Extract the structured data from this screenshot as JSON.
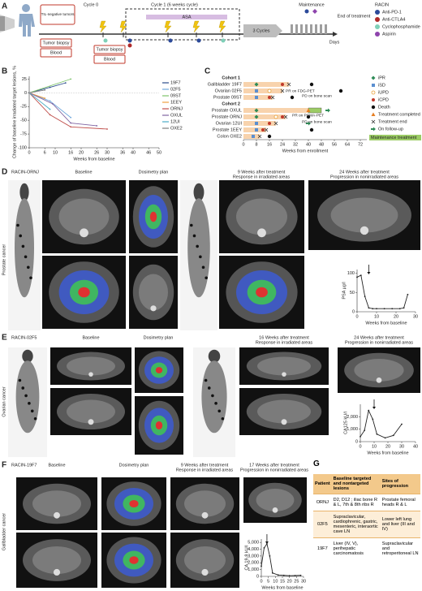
{
  "panel_a": {
    "label": "A",
    "tumor_box": "TIL-negative tumors",
    "screening": [
      "Tumor biopsy",
      "Blood"
    ],
    "cycle0": "Cycle 0",
    "cycle1": "Cycle 1 (6 weeks cycle)",
    "asa": "ASA",
    "cycle1_samples": [
      "Tumor biopsy",
      "Blood"
    ],
    "cycles": "3 Cycles",
    "maintenance": "Maintenance",
    "end": "End of treatment",
    "days": "Days",
    "legend_title": "RACIN",
    "legend": [
      {
        "name": "Anti-PD-1",
        "color": "#2c4a9a"
      },
      {
        "name": "Anti-CTLA4",
        "color": "#b02a2a"
      },
      {
        "name": "Cyclophosphamide",
        "color": "#7fd0b8"
      },
      {
        "name": "Aspirin",
        "color": "#8e44ad"
      }
    ]
  },
  "chart_data": [
    {
      "type": "line",
      "label": "B",
      "y_label": "Change of baseline irradiated target lesions, %",
      "x_label": "Weeks from baseline",
      "xlim": [
        0,
        50
      ],
      "ylim": [
        -100,
        30
      ],
      "xticks": [
        0,
        6,
        10,
        16,
        20,
        26,
        30,
        36,
        40,
        46,
        50
      ],
      "yticks": [
        25,
        0,
        -25,
        -50,
        -75,
        -100
      ],
      "legend": "right",
      "series": [
        {
          "name": "19F7",
          "color": "#2b4c8c",
          "x": [
            0,
            8,
            14
          ],
          "values": [
            0,
            10,
            18
          ]
        },
        {
          "name": "02F5",
          "color": "#6fa8dc",
          "x": [
            0,
            8,
            16
          ],
          "values": [
            0,
            -15,
            -45
          ]
        },
        {
          "name": "09ST",
          "color": "#7dc36b",
          "x": [
            0,
            16
          ],
          "values": [
            0,
            25
          ]
        },
        {
          "name": "1EEY",
          "color": "#f0a040",
          "x": [
            0,
            6
          ],
          "values": [
            0,
            -10
          ]
        },
        {
          "name": "ORNJ",
          "color": "#c0504d",
          "x": [
            0,
            8,
            16,
            30
          ],
          "values": [
            0,
            -40,
            -62,
            -66
          ]
        },
        {
          "name": "OXUL",
          "color": "#8064a2",
          "x": [
            0,
            9,
            16,
            26
          ],
          "values": [
            0,
            -20,
            -55,
            -60
          ]
        },
        {
          "name": "12UI",
          "color": "#4bacc6",
          "x": [
            0,
            8
          ],
          "values": [
            0,
            -30
          ]
        },
        {
          "name": "OXE2",
          "color": "#7f7f7f",
          "x": [
            0,
            6
          ],
          "values": [
            0,
            5
          ]
        }
      ]
    },
    {
      "type": "swimmer",
      "label": "C",
      "x_label": "Weeks from enrollment",
      "xlim": [
        0,
        76
      ],
      "xticks": [
        0,
        8,
        16,
        24,
        32,
        40,
        48,
        56,
        64,
        72
      ],
      "cohorts": [
        "Cohort 1",
        "Cohort 2"
      ],
      "categories": [
        "Gallbladder 19F7",
        "Ovarian 02F5",
        "Prostate 09ST",
        "Prostate OXUL",
        "Prostate ORNJ",
        "Ovarian 12UI",
        "Prostate 1EEY",
        "Colon OXE2"
      ],
      "values": [
        28,
        24,
        18,
        40,
        26,
        20,
        14,
        10
      ],
      "color": "#f8d3ad",
      "maintenance": {
        "name": "Maintenance treatment",
        "color": "#9ccc65",
        "values": [
          null,
          null,
          null,
          8,
          null,
          null,
          null,
          null
        ]
      },
      "annotations": [
        "PR on FDG-PET",
        "PD on bone scan",
        "PR on PSMA-PET",
        "PD on bone scan"
      ],
      "series": [
        {
          "name": "iPR",
          "color": "#2e8b57",
          "marker": "diamond",
          "values": [
            8,
            null,
            null,
            8,
            8,
            null,
            null,
            null
          ]
        },
        {
          "name": "iSD",
          "color": "#5b8fd0",
          "marker": "square",
          "values": [
            null,
            8,
            8,
            null,
            null,
            8,
            8,
            6
          ]
        },
        {
          "name": "iUPD",
          "color": "#e8a23a",
          "marker": "circle-open",
          "values": [
            null,
            16,
            null,
            null,
            20,
            null,
            null,
            null
          ]
        },
        {
          "name": "iCPD",
          "color": "#c0392b",
          "marker": "circle",
          "values": [
            24,
            null,
            16,
            null,
            24,
            16,
            12,
            null
          ]
        },
        {
          "name": "Death",
          "color": "#111111",
          "marker": "dot",
          "values": [
            42,
            60,
            30,
            null,
            40,
            null,
            42,
            16
          ]
        },
        {
          "name": "Treatment completed",
          "color": "#e67e22",
          "marker": "triangle",
          "values": [
            null,
            null,
            null,
            40,
            null,
            null,
            null,
            null
          ]
        },
        {
          "name": "Treatment end",
          "color": "#333333",
          "marker": "star",
          "values": [
            28,
            24,
            18,
            null,
            26,
            20,
            14,
            10
          ]
        },
        {
          "name": "On follow-up",
          "color": "#2e8b57",
          "marker": "arrow",
          "values": [
            null,
            null,
            null,
            52,
            null,
            40,
            null,
            null
          ]
        }
      ]
    },
    {
      "type": "line",
      "y_label": "PSA µg/l",
      "x_label": "Weeks from baseline",
      "xlim": [
        0,
        30
      ],
      "ylim": [
        0,
        110
      ],
      "xticks": [
        0,
        10,
        20,
        30
      ],
      "yticks": [
        0,
        50,
        100
      ],
      "color": "#222222",
      "x": [
        0,
        2,
        4,
        6,
        8,
        10,
        14,
        18,
        22,
        24,
        26
      ],
      "values": [
        90,
        95,
        40,
        10,
        8,
        8,
        8,
        8,
        8,
        10,
        45
      ]
    },
    {
      "type": "line",
      "y_label": "CA125 kU/l",
      "x_label": "Weeks from baseline",
      "xlim": [
        0,
        40
      ],
      "ylim": [
        0,
        3000
      ],
      "xticks": [
        0,
        10,
        20,
        30,
        40
      ],
      "yticks": [
        0,
        {
          "value": 1000,
          "label": "1,000"
        },
        {
          "value": 2000,
          "label": "2,000"
        }
      ],
      "color": "#222222",
      "x": [
        0,
        3,
        6,
        9,
        12,
        18,
        24,
        30
      ],
      "values": [
        400,
        900,
        2500,
        1800,
        600,
        300,
        500,
        1400
      ]
    },
    {
      "type": "line",
      "y_label": "CA 19-9 kU/l",
      "x_label": "Weeks from baseline",
      "xlim": [
        0,
        30
      ],
      "ylim": [
        0,
        5500
      ],
      "xticks": [
        0,
        5,
        10,
        15,
        20,
        25,
        30
      ],
      "yticks": [
        0,
        {
          "value": 1000,
          "label": "1,000"
        },
        {
          "value": 2000,
          "label": "2,000"
        },
        {
          "value": 3000,
          "label": "3,000"
        },
        {
          "value": 4000,
          "label": "4,000"
        },
        {
          "value": 5000,
          "label": "5,000"
        }
      ],
      "color": "#222222",
      "x": [
        0,
        2,
        4,
        6,
        8,
        12,
        16,
        20,
        24,
        28
      ],
      "values": [
        1500,
        4200,
        4800,
        3000,
        500,
        200,
        150,
        100,
        120,
        150
      ]
    }
  ],
  "panel_d": {
    "label": "D",
    "patient": "RACIN-ORNJ",
    "cancer": "Prostate cancer",
    "headers": [
      "Baseline",
      "Dosimetry plan",
      "9 Weeks after treatment",
      "24 Weeks after treatment"
    ],
    "subheaders": [
      "Response in irradiated areas",
      "Progression in nonirradiated areas"
    ]
  },
  "panel_e": {
    "label": "E",
    "patient": "RACIN-02F5",
    "cancer": "Ovarian cancer",
    "headers": [
      "Baseline",
      "Dosimetry plan",
      "16 Weeks after treatment",
      "24 Weeks after treatment"
    ],
    "subheaders": [
      "Response in irradiated areas",
      "Progression in nonirradiated areas"
    ]
  },
  "panel_f": {
    "label": "F",
    "patient": "RACIN-19F7",
    "cancer": "Gallbladder cancer",
    "headers": [
      "Baseline",
      "Dosimetry plan",
      "9 Weeks after treatment",
      "17 Weeks after treatment"
    ],
    "subheaders": [
      "Response in irradiated areas",
      "Progression in nonirradiated areas"
    ]
  },
  "table": {
    "label": "G",
    "headers": [
      "Patient",
      "Baseline targeted and nontargeted lesions",
      "Sites of progression"
    ],
    "rows": [
      [
        "ORNJ",
        "D2, D12 ; iliac bone R & L, 7th & 8th ribs R",
        "Prostate femoral heads R & L"
      ],
      [
        "02F5",
        "Supraclavicular, cardiophrenic, gastric, mesenteric, interaortic cave LN",
        "Lower left lung and liver (III and IV)"
      ],
      [
        "19F7",
        "Liver (IV, V), perihepatic carcinomatosis",
        "Supraclavicular and retroperitoneal LN"
      ]
    ]
  }
}
